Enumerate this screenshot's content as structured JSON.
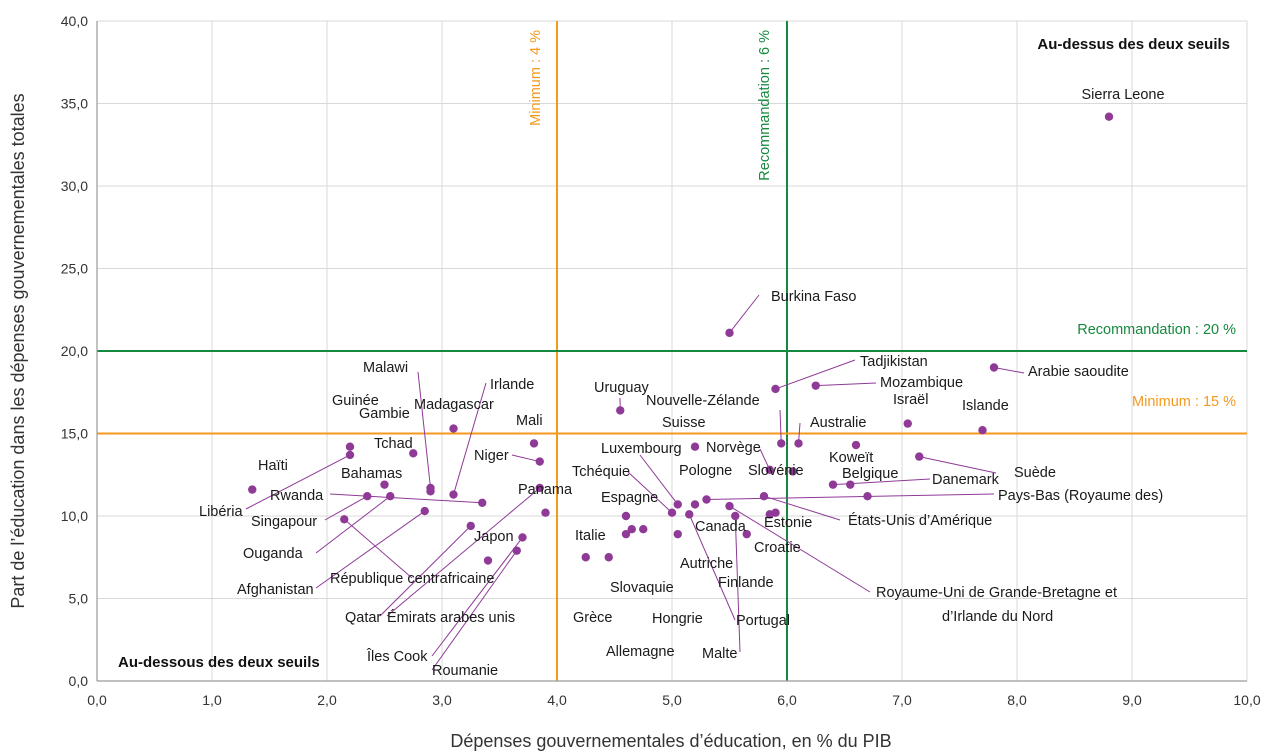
{
  "colors": {
    "minimum": "#F39A1E",
    "recommendation": "#16893F",
    "point": "#8E3A96",
    "grid": "#D9D9D9",
    "leader": "#8E3A96"
  },
  "chart_data": {
    "type": "scatter",
    "xlabel": "Dépenses gouvernementales d’éducation, en % du PIB",
    "ylabel": "Part de l’éducation dans les dépenses gouvernementales totales",
    "xlim": [
      0,
      10
    ],
    "ylim": [
      0,
      40
    ],
    "xticks": [
      "0,0",
      "1,0",
      "2,0",
      "3,0",
      "4,0",
      "5,0",
      "6,0",
      "7,0",
      "8,0",
      "9,0",
      "10,0"
    ],
    "yticks": [
      "0,0",
      "5,0",
      "10,0",
      "15,0",
      "20,0",
      "25,0",
      "30,0",
      "35,0",
      "40,0"
    ],
    "grid": true,
    "corner_labels": {
      "top_right": "Au-dessus des deux seuils",
      "bottom_left": "Au-dessous des deux seuils"
    },
    "thresholds": [
      {
        "axis": "x",
        "value": 4,
        "label": "Minimum : 4 %",
        "kind": "minimum"
      },
      {
        "axis": "x",
        "value": 6,
        "label": "Recommandation : 6 %",
        "kind": "recommendation"
      },
      {
        "axis": "y",
        "value": 15,
        "label": "Minimum : 15 %",
        "kind": "minimum"
      },
      {
        "axis": "y",
        "value": 20,
        "label": "Recommandation : 20 %",
        "kind": "recommendation"
      }
    ],
    "points": [
      {
        "name": "Sierra Leone",
        "x": 8.8,
        "y": 34.2
      },
      {
        "name": "Burkina Faso",
        "x": 5.5,
        "y": 21.1
      },
      {
        "name": "Arabie saoudite",
        "x": 7.8,
        "y": 19.0
      },
      {
        "name": "Tadjikistan",
        "x": 5.9,
        "y": 17.7
      },
      {
        "name": "Mozambique",
        "x": 6.25,
        "y": 17.9
      },
      {
        "name": "Israël",
        "x": 7.05,
        "y": 15.6
      },
      {
        "name": "Islande",
        "x": 7.7,
        "y": 15.2
      },
      {
        "name": "Uruguay",
        "x": 4.55,
        "y": 16.4
      },
      {
        "name": "Nouvelle-Zélande",
        "x": 5.95,
        "y": 14.4
      },
      {
        "name": "Australie",
        "x": 6.1,
        "y": 14.4
      },
      {
        "name": "Suisse",
        "x": 5.2,
        "y": 14.2
      },
      {
        "name": "Koweït",
        "x": 6.6,
        "y": 14.3
      },
      {
        "name": "Suède",
        "x": 7.15,
        "y": 13.6
      },
      {
        "name": "Norvège",
        "x": 5.85,
        "y": 12.8
      },
      {
        "name": "Slovénie",
        "x": 6.05,
        "y": 12.7
      },
      {
        "name": "Belgique",
        "x": 6.55,
        "y": 11.9
      },
      {
        "name": "Danemark",
        "x": 6.4,
        "y": 11.9
      },
      {
        "name": "États-Unis d’Amérique",
        "x": 5.8,
        "y": 11.2
      },
      {
        "name": "Pays-Bas (Royaume des)",
        "x": 5.3,
        "y": 11.0
      },
      {
        "name": "Estonie",
        "x": 6.7,
        "y": 11.2
      },
      {
        "name": "Luxembourg",
        "x": 5.05,
        "y": 10.7
      },
      {
        "name": "Pologne",
        "x": 5.2,
        "y": 10.7
      },
      {
        "name": "Tchéquie",
        "x": 5.0,
        "y": 10.2
      },
      {
        "name": "Espagne",
        "x": 4.6,
        "y": 10.0
      },
      {
        "name": "Canada",
        "x": 5.9,
        "y": 10.2
      },
      {
        "name": "Croatie",
        "x": 5.85,
        "y": 10.1
      },
      {
        "name": "Royaume-Uni de Grande-Bretagne et d’Irlande du Nord",
        "x": 5.5,
        "y": 10.6
      },
      {
        "name": "Portugal",
        "x": 5.15,
        "y": 10.1
      },
      {
        "name": "Malte",
        "x": 5.55,
        "y": 10.0
      },
      {
        "name": "Finlande",
        "x": 5.65,
        "y": 8.9
      },
      {
        "name": "Autriche",
        "x": 5.05,
        "y": 8.9
      },
      {
        "name": "Italie",
        "x": 4.25,
        "y": 7.5
      },
      {
        "name": "Grèce",
        "x": 4.45,
        "y": 7.5
      },
      {
        "name": "Slovaquie",
        "x": 4.6,
        "y": 8.9
      },
      {
        "name": "Hongrie",
        "x": 4.75,
        "y": 9.2
      },
      {
        "name": "Allemagne",
        "x": 4.65,
        "y": 9.2
      },
      {
        "name": "Haïti",
        "x": 1.35,
        "y": 11.6
      },
      {
        "name": "Libéria",
        "x": 2.2,
        "y": 13.7
      },
      {
        "name": "Guinée",
        "x": 2.2,
        "y": 14.2
      },
      {
        "name": "Bahamas",
        "x": 2.5,
        "y": 11.9
      },
      {
        "name": "Rwanda",
        "x": 3.35,
        "y": 10.8
      },
      {
        "name": "Singapour",
        "x": 2.35,
        "y": 11.2
      },
      {
        "name": "Ouganda",
        "x": 2.55,
        "y": 11.2
      },
      {
        "name": "Afghanistan",
        "x": 2.85,
        "y": 10.3
      },
      {
        "name": "République centrafricaine",
        "x": 2.15,
        "y": 9.8
      },
      {
        "name": "Gambie",
        "x": 2.9,
        "y": 11.5
      },
      {
        "name": "Tchad",
        "x": 2.75,
        "y": 13.8
      },
      {
        "name": "Malawi",
        "x": 2.9,
        "y": 11.7
      },
      {
        "name": "Madagascar",
        "x": 3.1,
        "y": 15.3
      },
      {
        "name": "Irlande",
        "x": 3.1,
        "y": 11.3
      },
      {
        "name": "Mali",
        "x": 3.8,
        "y": 14.4
      },
      {
        "name": "Niger",
        "x": 3.85,
        "y": 13.3
      },
      {
        "name": "Panama",
        "x": 3.9,
        "y": 10.2
      },
      {
        "name": "Qatar",
        "x": 3.25,
        "y": 9.4
      },
      {
        "name": "Japon",
        "x": 3.4,
        "y": 7.3
      },
      {
        "name": "Émirats arabes unis",
        "x": 3.85,
        "y": 11.7
      },
      {
        "name": "Îles Cook",
        "x": 3.7,
        "y": 8.7
      },
      {
        "name": "Roumanie",
        "x": 3.65,
        "y": 7.9
      }
    ]
  }
}
